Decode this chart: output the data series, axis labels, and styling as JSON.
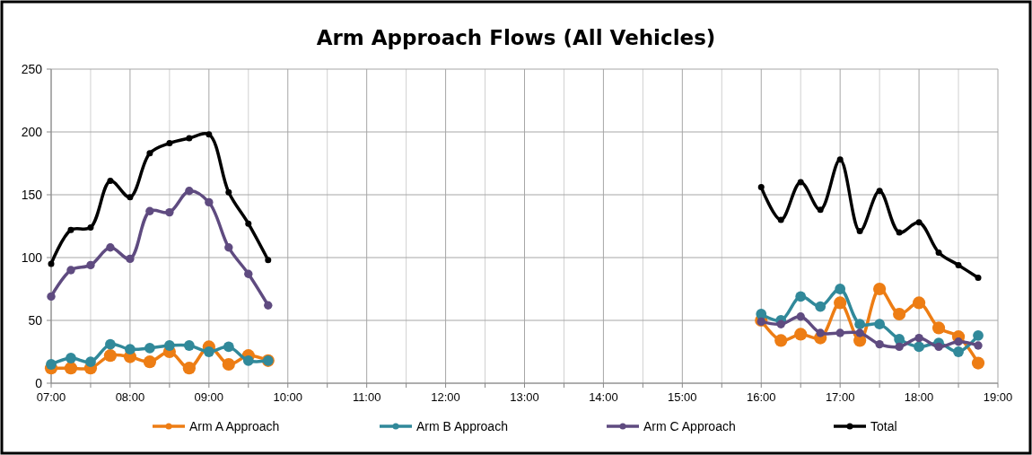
{
  "chart_data": {
    "type": "line",
    "title": "Arm Approach Flows (All Vehicles)",
    "x": [
      7,
      7.25,
      7.5,
      7.75,
      8,
      8.25,
      8.5,
      8.75,
      9,
      9.25,
      9.5,
      9.75,
      16,
      16.25,
      16.5,
      16.75,
      17,
      17.25,
      17.5,
      17.75,
      18,
      18.25,
      18.5,
      18.75
    ],
    "series": [
      {
        "name": "Arm A Approach",
        "color": "#ed7d14",
        "values": [
          12,
          12,
          12,
          22,
          21,
          17,
          25,
          12,
          29,
          15,
          22,
          18,
          50,
          34,
          39,
          36,
          64,
          34,
          75,
          55,
          64,
          44,
          37,
          16
        ]
      },
      {
        "name": "Arm B Approach",
        "color": "#31899a",
        "values": [
          15,
          20,
          17,
          31,
          27,
          28,
          30,
          30,
          25,
          29,
          18,
          18,
          55,
          50,
          69,
          61,
          75,
          47,
          47,
          35,
          29,
          32,
          25,
          38
        ]
      },
      {
        "name": "Arm C Approach",
        "color": "#5f4b80",
        "values": [
          69,
          90,
          94,
          108,
          99,
          137,
          136,
          153,
          144,
          108,
          87,
          62,
          49,
          47,
          53,
          40,
          40,
          40,
          31,
          29,
          36,
          29,
          33,
          30
        ]
      },
      {
        "name": "Total",
        "color": "#000000",
        "values": [
          95,
          122,
          124,
          161,
          148,
          183,
          191,
          195,
          198,
          152,
          127,
          98,
          156,
          130,
          160,
          138,
          178,
          121,
          153,
          120,
          128,
          104,
          94,
          84
        ]
      }
    ],
    "xlim": [
      7,
      19
    ],
    "xticks": [
      {
        "value": 7,
        "label": "07:00"
      },
      {
        "value": 7.5,
        "label": null
      },
      {
        "value": 8,
        "label": "08:00"
      },
      {
        "value": 8.5,
        "label": null
      },
      {
        "value": 9,
        "label": "09:00"
      },
      {
        "value": 9.5,
        "label": null
      },
      {
        "value": 10,
        "label": "10:00"
      },
      {
        "value": 10.5,
        "label": null
      },
      {
        "value": 11,
        "label": "11:00"
      },
      {
        "value": 11.5,
        "label": null
      },
      {
        "value": 12,
        "label": "12:00"
      },
      {
        "value": 12.5,
        "label": null
      },
      {
        "value": 13,
        "label": "13:00"
      },
      {
        "value": 13.5,
        "label": null
      },
      {
        "value": 14,
        "label": "14:00"
      },
      {
        "value": 14.5,
        "label": null
      },
      {
        "value": 15,
        "label": "15:00"
      },
      {
        "value": 15.5,
        "label": null
      },
      {
        "value": 16,
        "label": "16:00"
      },
      {
        "value": 16.5,
        "label": null
      },
      {
        "value": 17,
        "label": "17:00"
      },
      {
        "value": 17.5,
        "label": null
      },
      {
        "value": 18,
        "label": "18:00"
      },
      {
        "value": 18.5,
        "label": null
      },
      {
        "value": 19,
        "label": "19:00"
      }
    ],
    "ylim": [
      0,
      250
    ],
    "yticks": [
      0,
      50,
      100,
      150,
      200,
      250
    ],
    "grid": true,
    "legend": "bottom",
    "marker": "circle",
    "line_style": "solid"
  }
}
